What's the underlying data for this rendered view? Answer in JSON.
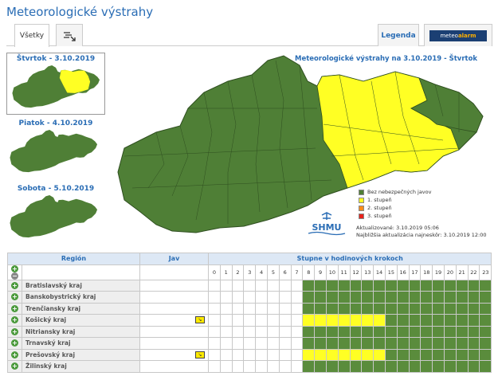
{
  "title": "Meteorologické výstrahy",
  "tabs": {
    "all": "Všetky",
    "legend": "Legenda",
    "meteoalarm_prefix": "meteo",
    "meteoalarm_bold": "alarm"
  },
  "days": [
    {
      "label": "Štvrtok - 3.10.2019"
    },
    {
      "label": "Piatok - 4.10.2019"
    },
    {
      "label": "Sobota - 5.10.2019"
    }
  ],
  "map": {
    "title": "Meteorologické výstrahy na 3.10.2019 - Štvrtok",
    "legend": [
      {
        "label": "Bez nebezpečných javov",
        "color": "#4f7f36"
      },
      {
        "label": "1. stupeň",
        "color": "#ffff24"
      },
      {
        "label": "2. stupeň",
        "color": "#ff8c1a"
      },
      {
        "label": "3. stupeň",
        "color": "#e8221b"
      }
    ],
    "updated": "Aktualizované: 3.10.2019 05:06",
    "next_update": "Najbližšia aktualizácia najneskôr: 3.10.2019 12:00",
    "logo_text": "SHMU"
  },
  "table": {
    "col_region": "Región",
    "col_jav": "Jav",
    "col_hours": "Stupne v hodinových krokoch",
    "hours": [
      "0",
      "1",
      "2",
      "3",
      "4",
      "5",
      "6",
      "7",
      "8",
      "9",
      "10",
      "11",
      "12",
      "13",
      "14",
      "15",
      "16",
      "17",
      "18",
      "19",
      "20",
      "21",
      "22",
      "23"
    ],
    "regions": [
      {
        "name": "Bratislavský kraj",
        "warn": false
      },
      {
        "name": "Banskobystrický kraj",
        "warn": false
      },
      {
        "name": "Trenčiansky kraj",
        "warn": false
      },
      {
        "name": "Košický kraj",
        "warn": true
      },
      {
        "name": "Nitriansky kraj",
        "warn": false
      },
      {
        "name": "Trnavský kraj",
        "warn": false
      },
      {
        "name": "Prešovský kraj",
        "warn": true
      },
      {
        "name": "Žilinský kraj",
        "warn": false
      }
    ],
    "warn_hours": [
      8,
      9,
      10,
      11,
      12,
      13,
      14
    ],
    "data_start_hour": 8
  }
}
